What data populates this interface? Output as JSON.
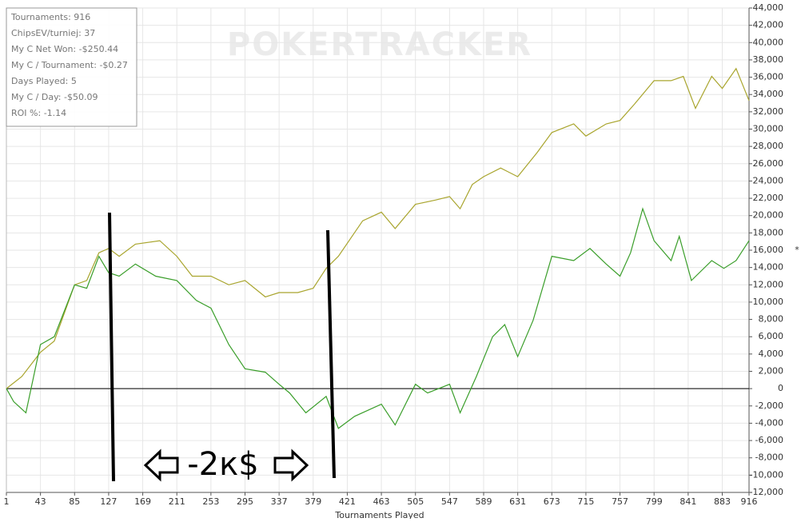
{
  "chart_data": {
    "type": "line",
    "watermark": "POKERTRACKER",
    "stats": [
      "Tournaments: 916",
      "ChipsEV/turniej: 37",
      "My C Net Won: -$250.44",
      "My C / Tournament: -$0.27",
      "Days Played: 5",
      "My C / Day: -$50.09",
      "ROI %: -1.14"
    ],
    "x_label": "Tournaments Played",
    "right_marker": "*",
    "annotation": "-2к$",
    "xlim": [
      1,
      916
    ],
    "xticks": [
      1,
      43,
      85,
      127,
      169,
      211,
      253,
      295,
      337,
      379,
      421,
      463,
      505,
      547,
      589,
      631,
      673,
      715,
      757,
      799,
      841,
      883,
      916
    ],
    "ylim": [
      -12000,
      44000
    ],
    "yticks": [
      {
        "value": -12000,
        "label": "-12,000"
      },
      {
        "value": -10000,
        "label": "-10,000"
      },
      {
        "value": -8000,
        "label": "-8,000"
      },
      {
        "value": -6000,
        "label": "-6,000"
      },
      {
        "value": -4000,
        "label": "-4,000"
      },
      {
        "value": -2000,
        "label": "-2,000"
      },
      0,
      {
        "value": 2000,
        "label": "2,000"
      },
      {
        "value": 4000,
        "label": "4,000"
      },
      {
        "value": 6000,
        "label": "6,000"
      },
      {
        "value": 8000,
        "label": "8,000"
      },
      {
        "value": 10000,
        "label": "10,000"
      },
      {
        "value": 12000,
        "label": "12,000"
      },
      {
        "value": 14000,
        "label": "14,000"
      },
      {
        "value": 16000,
        "label": "16,000"
      },
      {
        "value": 18000,
        "label": "18,000"
      },
      {
        "value": 20000,
        "label": "20,000"
      },
      {
        "value": 22000,
        "label": "22,000"
      },
      {
        "value": 24000,
        "label": "24,000"
      },
      {
        "value": 26000,
        "label": "26,000"
      },
      {
        "value": 28000,
        "label": "28,000"
      },
      {
        "value": 30000,
        "label": "30,000"
      },
      {
        "value": 32000,
        "label": "32,000"
      },
      {
        "value": 34000,
        "label": "34,000"
      },
      {
        "value": 36000,
        "label": "36,000"
      },
      {
        "value": 38000,
        "label": "38,000"
      },
      {
        "value": 40000,
        "label": "40,000"
      },
      {
        "value": 42000,
        "label": "42,000"
      },
      {
        "value": 44000,
        "label": "44,000"
      }
    ],
    "grid": true,
    "series": [
      {
        "color": "#a9a52e",
        "x": [
          1,
          20,
          43,
          60,
          85,
          100,
          115,
          127,
          140,
          160,
          190,
          211,
          230,
          253,
          275,
          295,
          320,
          337,
          360,
          379,
          395,
          410,
          440,
          463,
          480,
          505,
          530,
          547,
          560,
          575,
          589,
          610,
          631,
          655,
          673,
          700,
          715,
          740,
          757,
          775,
          799,
          820,
          835,
          850,
          870,
          883,
          900,
          916
        ],
        "values": [
          0,
          1400,
          4200,
          5500,
          12000,
          12500,
          15700,
          16200,
          15300,
          16700,
          17100,
          15300,
          13000,
          13000,
          12000,
          12500,
          10600,
          11100,
          11100,
          11600,
          13900,
          15300,
          19400,
          20400,
          18500,
          21300,
          21800,
          22200,
          20800,
          23600,
          24500,
          25500,
          24500,
          27300,
          29600,
          30600,
          29200,
          30600,
          31000,
          32900,
          35600,
          35600,
          36100,
          32400,
          36100,
          34700,
          37000,
          33300
        ]
      },
      {
        "color": "#3a9e2a",
        "x": [
          1,
          10,
          25,
          43,
          60,
          85,
          100,
          115,
          127,
          140,
          160,
          185,
          211,
          235,
          253,
          275,
          295,
          320,
          337,
          350,
          370,
          395,
          410,
          430,
          463,
          480,
          505,
          520,
          547,
          560,
          580,
          600,
          615,
          631,
          650,
          673,
          700,
          720,
          740,
          757,
          770,
          785,
          799,
          820,
          830,
          845,
          870,
          885,
          900,
          916
        ],
        "values": [
          0,
          -1500,
          -2800,
          5100,
          6000,
          12000,
          11600,
          15300,
          13400,
          13000,
          14400,
          13000,
          12500,
          10200,
          9300,
          5100,
          2300,
          1900,
          500,
          -500,
          -2800,
          -900,
          -4600,
          -3200,
          -1800,
          -4200,
          500,
          -500,
          500,
          -2800,
          1400,
          6000,
          7400,
          3700,
          7900,
          15300,
          14800,
          16200,
          14400,
          13000,
          15700,
          20800,
          17100,
          14800,
          17600,
          12500,
          14800,
          13900,
          14800,
          17100
        ]
      }
    ]
  }
}
